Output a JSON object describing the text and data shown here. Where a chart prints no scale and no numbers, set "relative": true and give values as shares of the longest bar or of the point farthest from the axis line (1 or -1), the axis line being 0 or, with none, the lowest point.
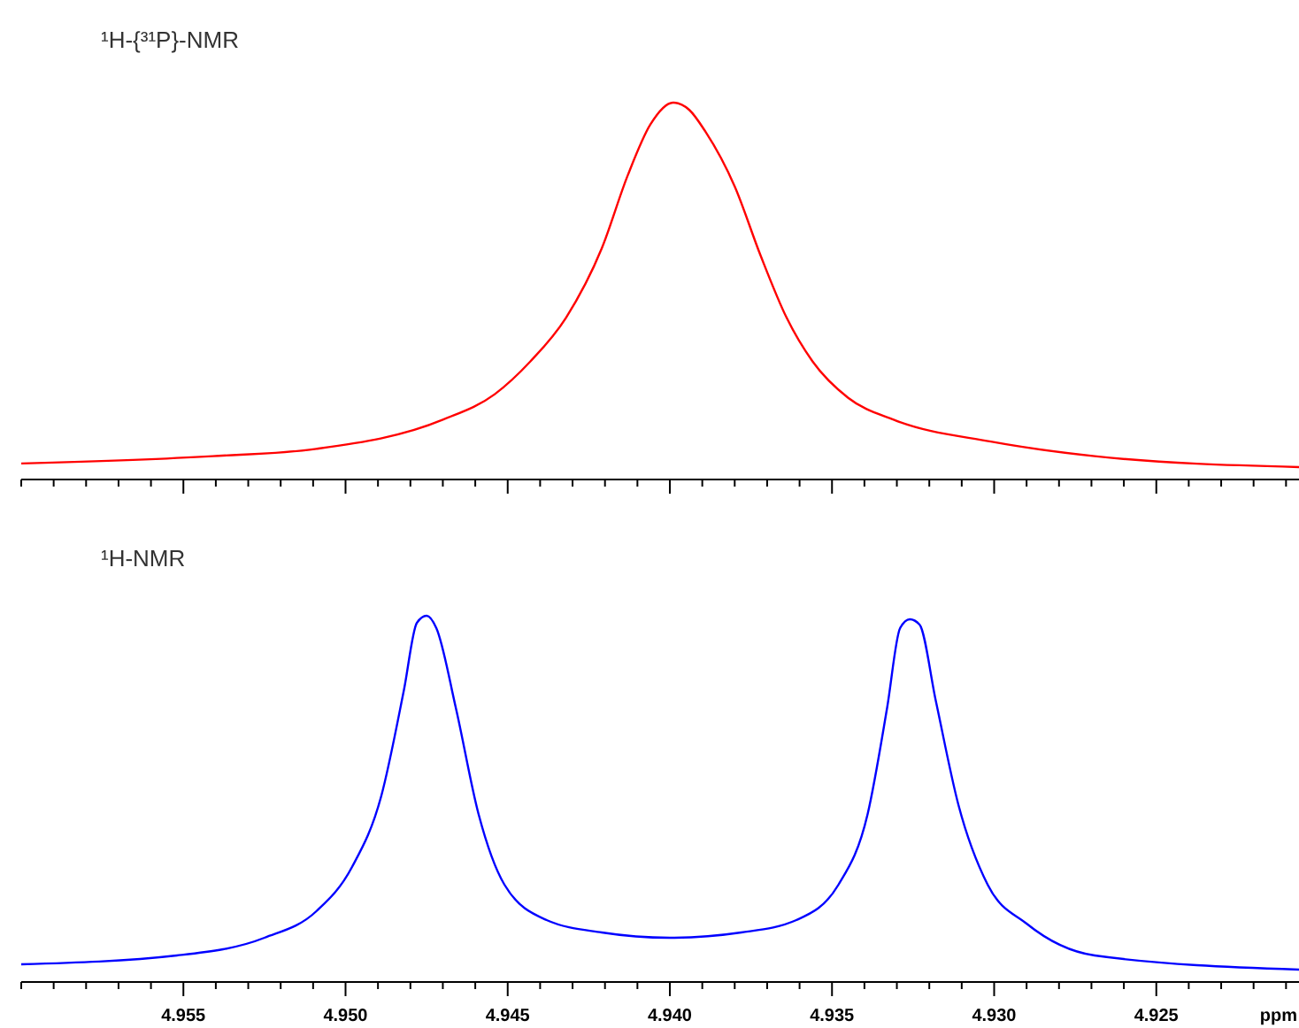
{
  "chart_data": [
    {
      "type": "line",
      "title": "¹H-{³¹P}-NMR",
      "relative": true,
      "xlim": [
        4.96,
        4.9206
      ],
      "tick_labels": false,
      "xticks": [
        {
          "value": 4.96,
          "label": null
        },
        {
          "value": 4.959,
          "label": null
        },
        {
          "value": 4.958,
          "label": null
        },
        {
          "value": 4.957,
          "label": null
        },
        {
          "value": 4.956,
          "label": null
        },
        4.955,
        {
          "value": 4.954,
          "label": null
        },
        {
          "value": 4.953,
          "label": null
        },
        {
          "value": 4.952,
          "label": null
        },
        {
          "value": 4.951,
          "label": null
        },
        4.95,
        {
          "value": 4.949,
          "label": null
        },
        {
          "value": 4.948,
          "label": null
        },
        {
          "value": 4.947,
          "label": null
        },
        {
          "value": 4.946,
          "label": null
        },
        4.945,
        {
          "value": 4.944,
          "label": null
        },
        {
          "value": 4.943,
          "label": null
        },
        {
          "value": 4.942,
          "label": null
        },
        {
          "value": 4.941,
          "label": null
        },
        4.94,
        {
          "value": 4.939,
          "label": null
        },
        {
          "value": 4.938,
          "label": null
        },
        {
          "value": 4.937,
          "label": null
        },
        {
          "value": 4.936,
          "label": null
        },
        4.935,
        {
          "value": 4.934,
          "label": null
        },
        {
          "value": 4.933,
          "label": null
        },
        {
          "value": 4.932,
          "label": null
        },
        {
          "value": 4.931,
          "label": null
        },
        4.93,
        {
          "value": 4.929,
          "label": null
        },
        {
          "value": 4.928,
          "label": null
        },
        {
          "value": 4.927,
          "label": null
        },
        {
          "value": 4.926,
          "label": null
        },
        4.925,
        {
          "value": 4.924,
          "label": null
        },
        {
          "value": 4.923,
          "label": null
        },
        {
          "value": 4.922,
          "label": null
        },
        {
          "value": 4.921,
          "label": null
        }
      ],
      "x": [
        4.96,
        4.9541,
        4.9509,
        4.947,
        4.9454,
        4.9443,
        4.9432,
        4.9421,
        4.9413,
        4.9406,
        4.9399,
        4.9394,
        4.9389,
        4.938,
        4.9372,
        4.9364,
        4.9356,
        4.9345,
        4.9331,
        4.9301,
        4.9269,
        4.9206
      ],
      "series": [
        {
          "color": "#ff0000",
          "values": [
            0.01,
            0.03,
            0.05,
            0.13,
            0.2,
            0.29,
            0.41,
            0.6,
            0.8,
            0.94,
            1,
            0.98,
            0.92,
            0.77,
            0.58,
            0.41,
            0.29,
            0.19,
            0.13,
            0.07,
            0.03,
            0
          ]
        }
      ]
    },
    {
      "type": "line",
      "title": "¹H-NMR",
      "relative": true,
      "xlim": [
        4.96,
        4.9206
      ],
      "xlabel": "ppm",
      "tick_labels": "x",
      "xticks": [
        {
          "value": 4.96,
          "label": null
        },
        {
          "value": 4.959,
          "label": null
        },
        {
          "value": 4.958,
          "label": null
        },
        {
          "value": 4.957,
          "label": null
        },
        {
          "value": 4.956,
          "label": null
        },
        {
          "value": 4.955,
          "label": "4.955"
        },
        {
          "value": 4.954,
          "label": null
        },
        {
          "value": 4.953,
          "label": null
        },
        {
          "value": 4.952,
          "label": null
        },
        {
          "value": 4.951,
          "label": null
        },
        {
          "value": 4.95,
          "label": "4.950"
        },
        {
          "value": 4.949,
          "label": null
        },
        {
          "value": 4.948,
          "label": null
        },
        {
          "value": 4.947,
          "label": null
        },
        {
          "value": 4.946,
          "label": null
        },
        {
          "value": 4.945,
          "label": "4.945"
        },
        {
          "value": 4.944,
          "label": null
        },
        {
          "value": 4.943,
          "label": null
        },
        {
          "value": 4.942,
          "label": null
        },
        {
          "value": 4.941,
          "label": null
        },
        {
          "value": 4.94,
          "label": "4.940"
        },
        {
          "value": 4.939,
          "label": null
        },
        {
          "value": 4.938,
          "label": null
        },
        {
          "value": 4.937,
          "label": null
        },
        {
          "value": 4.936,
          "label": null
        },
        {
          "value": 4.935,
          "label": "4.935"
        },
        {
          "value": 4.934,
          "label": null
        },
        {
          "value": 4.933,
          "label": null
        },
        {
          "value": 4.932,
          "label": null
        },
        {
          "value": 4.931,
          "label": null
        },
        {
          "value": 4.93,
          "label": "4.930"
        },
        {
          "value": 4.929,
          "label": null
        },
        {
          "value": 4.928,
          "label": null
        },
        {
          "value": 4.927,
          "label": null
        },
        {
          "value": 4.926,
          "label": null
        },
        {
          "value": 4.925,
          "label": "4.925"
        },
        {
          "value": 4.924,
          "label": null
        },
        {
          "value": 4.923,
          "label": null
        },
        {
          "value": 4.922,
          "label": null
        },
        {
          "value": 4.921,
          "label": null
        }
      ],
      "x": [
        4.96,
        4.9552,
        4.9525,
        4.9509,
        4.9498,
        4.9489,
        4.9482,
        4.9478,
        4.9475,
        4.9472,
        4.9466,
        4.9459,
        4.9451,
        4.9438,
        4.9421,
        4.94,
        4.9378,
        4.9361,
        4.9348,
        4.9339,
        4.9333,
        4.9329,
        4.9326,
        4.9323,
        4.9318,
        4.9311,
        4.9302,
        4.929,
        4.9269,
        4.9206
      ],
      "series": [
        {
          "color": "#0000ff",
          "values": [
            0.015,
            0.04,
            0.09,
            0.165,
            0.29,
            0.49,
            0.79,
            0.98,
            1,
            0.965,
            0.74,
            0.44,
            0.24,
            0.14,
            0.105,
            0.09,
            0.105,
            0.14,
            0.24,
            0.44,
            0.74,
            0.965,
            0.99,
            0.975,
            0.76,
            0.465,
            0.24,
            0.13,
            0.04,
            0
          ]
        }
      ]
    }
  ]
}
